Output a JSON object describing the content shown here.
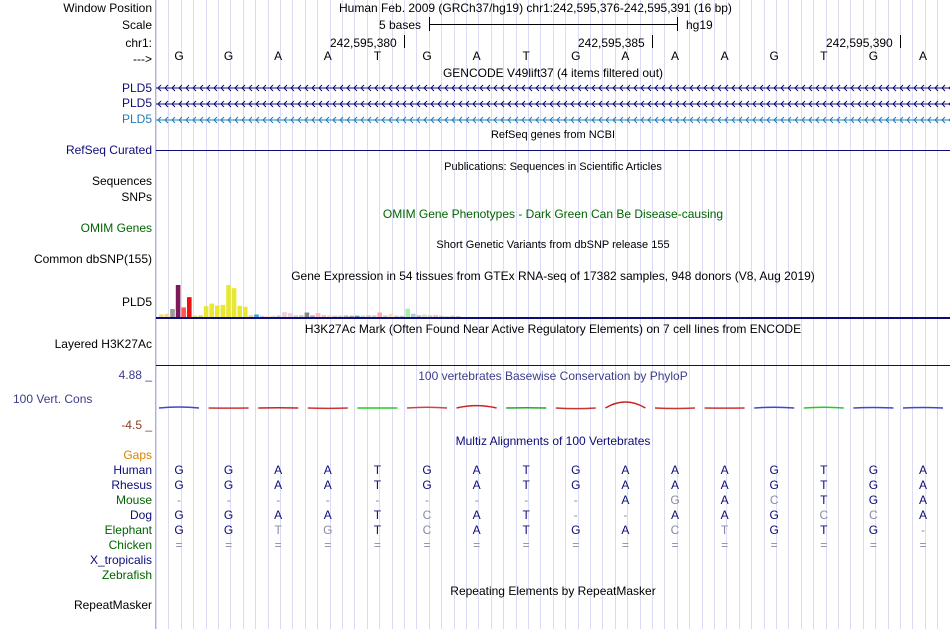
{
  "header": {
    "window_position_label": "Window Position",
    "window_position_value": "Human Feb. 2009 (GRCh37/hg19)   chr1:242,595,376-242,595,391 (16 bp)",
    "scale_label": "Scale",
    "scale_text": "5 bases",
    "scale_assembly": "hg19",
    "chrom_label": "chr1:",
    "positions": [
      "242,595,380",
      "242,595,385",
      "242,595,390"
    ],
    "strand_label": "--->"
  },
  "sequence": [
    "G",
    "G",
    "A",
    "A",
    "T",
    "G",
    "A",
    "T",
    "G",
    "A",
    "A",
    "A",
    "G",
    "T",
    "G",
    "A"
  ],
  "gencode": {
    "title": "GENCODE V49lift37 (4 items filtered out)",
    "genes": [
      {
        "label": "PLD5",
        "color": "#0c0c78"
      },
      {
        "label": "PLD5",
        "color": "#0c0c78"
      },
      {
        "label": "PLD5",
        "color": "#1f7bb6"
      }
    ]
  },
  "refseq": {
    "title": "RefSeq genes from NCBI",
    "label": "RefSeq Curated",
    "color": "#0c0c78"
  },
  "publications": {
    "title": "Publications: Sequences in Scientific Articles",
    "labels": [
      "Sequences",
      "SNPs"
    ]
  },
  "omim": {
    "title": "OMIM Gene Phenotypes - Dark Green Can Be Disease-causing",
    "label": "OMIM Genes",
    "color": "#006400"
  },
  "dbsnp": {
    "title": "Short Genetic Variants from dbSNP release 155",
    "label": "Common dbSNP(155)"
  },
  "gtex": {
    "title": "Gene Expression in 54 tissues from GTEx RNA-seq of 17382 samples, 948 donors (V8, Aug 2019)",
    "label": "PLD5",
    "bars": [
      {
        "v": 0.08,
        "c": "#f7d88a"
      },
      {
        "v": 0.1,
        "c": "#f7d88a"
      },
      {
        "v": 0.25,
        "c": "#9a9a9a"
      },
      {
        "v": 1.0,
        "c": "#7a1a5a"
      },
      {
        "v": 0.3,
        "c": "#ff5555"
      },
      {
        "v": 0.62,
        "c": "#ee1111"
      },
      {
        "v": 0.04,
        "c": "#dddd66"
      },
      {
        "v": 0.05,
        "c": "#dddd66"
      },
      {
        "v": 0.34,
        "c": "#e8e830"
      },
      {
        "v": 0.42,
        "c": "#e8e830"
      },
      {
        "v": 0.36,
        "c": "#e8e830"
      },
      {
        "v": 0.38,
        "c": "#e8e830"
      },
      {
        "v": 1.0,
        "c": "#e8e830"
      },
      {
        "v": 0.9,
        "c": "#e8e830"
      },
      {
        "v": 0.35,
        "c": "#e8e830"
      },
      {
        "v": 0.32,
        "c": "#e8e830"
      },
      {
        "v": 0.06,
        "c": "#ffcc99"
      },
      {
        "v": 0.08,
        "c": "#33aadd"
      },
      {
        "v": 0.04,
        "c": "#ccccff"
      },
      {
        "v": 0.03,
        "c": "#ffddcc"
      },
      {
        "v": 0.04,
        "c": "#ddddcc"
      },
      {
        "v": 0.05,
        "c": "#cccccc"
      },
      {
        "v": 0.15,
        "c": "#eed0d8"
      },
      {
        "v": 0.12,
        "c": "#eed0d8"
      },
      {
        "v": 0.05,
        "c": "#cccccc"
      },
      {
        "v": 0.06,
        "c": "#cccccc"
      },
      {
        "v": 0.14,
        "c": "#888888"
      },
      {
        "v": 0.05,
        "c": "#aaaacc"
      },
      {
        "v": 0.12,
        "c": "#ffbbbb"
      },
      {
        "v": 0.06,
        "c": "#ffbbbb"
      },
      {
        "v": 0.05,
        "c": "#eeddaa"
      },
      {
        "v": 0.04,
        "c": "#cccccc"
      },
      {
        "v": 0.04,
        "c": "#cccccc"
      },
      {
        "v": 0.05,
        "c": "#bbbbbb"
      },
      {
        "v": 0.04,
        "c": "#aaaaaa"
      },
      {
        "v": 0.04,
        "c": "#5599aa"
      },
      {
        "v": 0.04,
        "c": "#cccccc"
      },
      {
        "v": 0.06,
        "c": "#cccccc"
      },
      {
        "v": 0.05,
        "c": "#cccccc"
      },
      {
        "v": 0.14,
        "c": "#ffaaaa"
      },
      {
        "v": 0.05,
        "c": "#cccccc"
      },
      {
        "v": 0.1,
        "c": "#ffddaa"
      },
      {
        "v": 0.04,
        "c": "#cccccc"
      },
      {
        "v": 0.04,
        "c": "#cccccc"
      },
      {
        "v": 0.26,
        "c": "#aaeeaa"
      },
      {
        "v": 0.1,
        "c": "#aaccdd"
      },
      {
        "v": 0.05,
        "c": "#bbbbbb"
      },
      {
        "v": 0.08,
        "c": "#ddddcc"
      },
      {
        "v": 0.05,
        "c": "#cccccc"
      },
      {
        "v": 0.06,
        "c": "#eebbcc"
      },
      {
        "v": 0.04,
        "c": "#cccccc"
      },
      {
        "v": 0.03,
        "c": "#dddddd"
      },
      {
        "v": 0.04,
        "c": "#cccccc"
      },
      {
        "v": 0.03,
        "c": "#cccccc"
      }
    ]
  },
  "h3k27ac": {
    "title": "H3K27Ac Mark (Often Found Near Active Regulatory Elements) on 7 cell lines from ENCODE",
    "label": "Layered H3K27Ac"
  },
  "phylop": {
    "title": "100 vertebrates Basewise Conservation by PhyloP",
    "label": "100 Vert. Cons",
    "max": "4.88 _",
    "min": "-4.5 _",
    "max_color": "#3c3c8c",
    "min_color": "#8c3c1e",
    "scores": [
      0.4,
      -0.1,
      0.1,
      -0.2,
      0.0,
      0.3,
      0.9,
      0.1,
      -0.4,
      2.3,
      -0.3,
      -0.1,
      0.3,
      0.3,
      0.2,
      0.2
    ]
  },
  "multiz": {
    "title": "Multiz Alignments of 100 Vertebrates",
    "gaps_label": "Gaps",
    "species": [
      {
        "name": "Human",
        "color": "#0c0c78",
        "seq": [
          "G",
          "G",
          "A",
          "A",
          "T",
          "G",
          "A",
          "T",
          "G",
          "A",
          "A",
          "A",
          "G",
          "T",
          "G",
          "A"
        ]
      },
      {
        "name": "Rhesus",
        "color": "#0c0c78",
        "seq": [
          "G",
          "G",
          "A",
          "A",
          "T",
          "G",
          "A",
          "T",
          "G",
          "A",
          "A",
          "A",
          "G",
          "T",
          "G",
          "A"
        ]
      },
      {
        "name": "Mouse",
        "color": "#006400",
        "seq": [
          "-",
          "-",
          "-",
          "-",
          "-",
          "-",
          "-",
          "-",
          "-",
          "A",
          "G",
          "A",
          "C",
          "T",
          "G",
          "A"
        ]
      },
      {
        "name": "Dog",
        "color": "#0c0c78",
        "seq": [
          "G",
          "G",
          "A",
          "A",
          "T",
          "C",
          "A",
          "T",
          "-",
          "-",
          "A",
          "A",
          "G",
          "C",
          "C",
          "A"
        ]
      },
      {
        "name": "Elephant",
        "color": "#006400",
        "seq": [
          "G",
          "G",
          "T",
          "G",
          "T",
          "C",
          "A",
          "T",
          "G",
          "A",
          "C",
          "T",
          "G",
          "T",
          "G",
          "-"
        ]
      },
      {
        "name": "Chicken",
        "color": "#006400",
        "seq": [
          "=",
          "=",
          "=",
          "=",
          "=",
          "=",
          "=",
          "=",
          "=",
          "=",
          "=",
          "=",
          "=",
          "=",
          "=",
          "="
        ]
      },
      {
        "name": "X_tropicalis",
        "color": "#0c0c78",
        "seq": []
      },
      {
        "name": "Zebrafish",
        "color": "#006400",
        "seq": []
      }
    ]
  },
  "repeatmasker": {
    "title": "Repeating Elements by RepeatMasker",
    "label": "RepeatMasker"
  }
}
